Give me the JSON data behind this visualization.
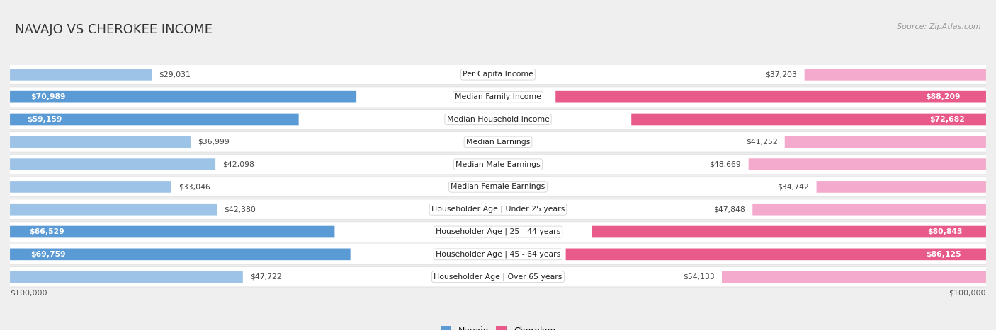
{
  "title": "NAVAJO VS CHEROKEE INCOME",
  "source": "Source: ZipAtlas.com",
  "categories": [
    "Per Capita Income",
    "Median Family Income",
    "Median Household Income",
    "Median Earnings",
    "Median Male Earnings",
    "Median Female Earnings",
    "Householder Age | Under 25 years",
    "Householder Age | 25 - 44 years",
    "Householder Age | 45 - 64 years",
    "Householder Age | Over 65 years"
  ],
  "navajo_values": [
    29031,
    70989,
    59159,
    36999,
    42098,
    33046,
    42380,
    66529,
    69759,
    47722
  ],
  "cherokee_values": [
    37203,
    88209,
    72682,
    41252,
    48669,
    34742,
    47848,
    80843,
    86125,
    54133
  ],
  "navajo_labels": [
    "$29,031",
    "$70,989",
    "$59,159",
    "$36,999",
    "$42,098",
    "$33,046",
    "$42,380",
    "$66,529",
    "$69,759",
    "$47,722"
  ],
  "cherokee_labels": [
    "$37,203",
    "$88,209",
    "$72,682",
    "$41,252",
    "$48,669",
    "$34,742",
    "$47,848",
    "$80,843",
    "$86,125",
    "$54,133"
  ],
  "max_value": 100000,
  "navajo_color_dark": "#5B9BD5",
  "navajo_color_light": "#9DC3E6",
  "cherokee_color_dark": "#E85A8A",
  "cherokee_color_light": "#F4AACC",
  "bg_color": "#EFEFEF",
  "row_bg_color": "#FAFAFA",
  "title_fontsize": 13,
  "cat_fontsize": 7.8,
  "val_fontsize": 7.8,
  "legend_fontsize": 9,
  "source_fontsize": 8,
  "nav_label_inside_threshold": 55000,
  "che_label_inside_threshold": 60000
}
